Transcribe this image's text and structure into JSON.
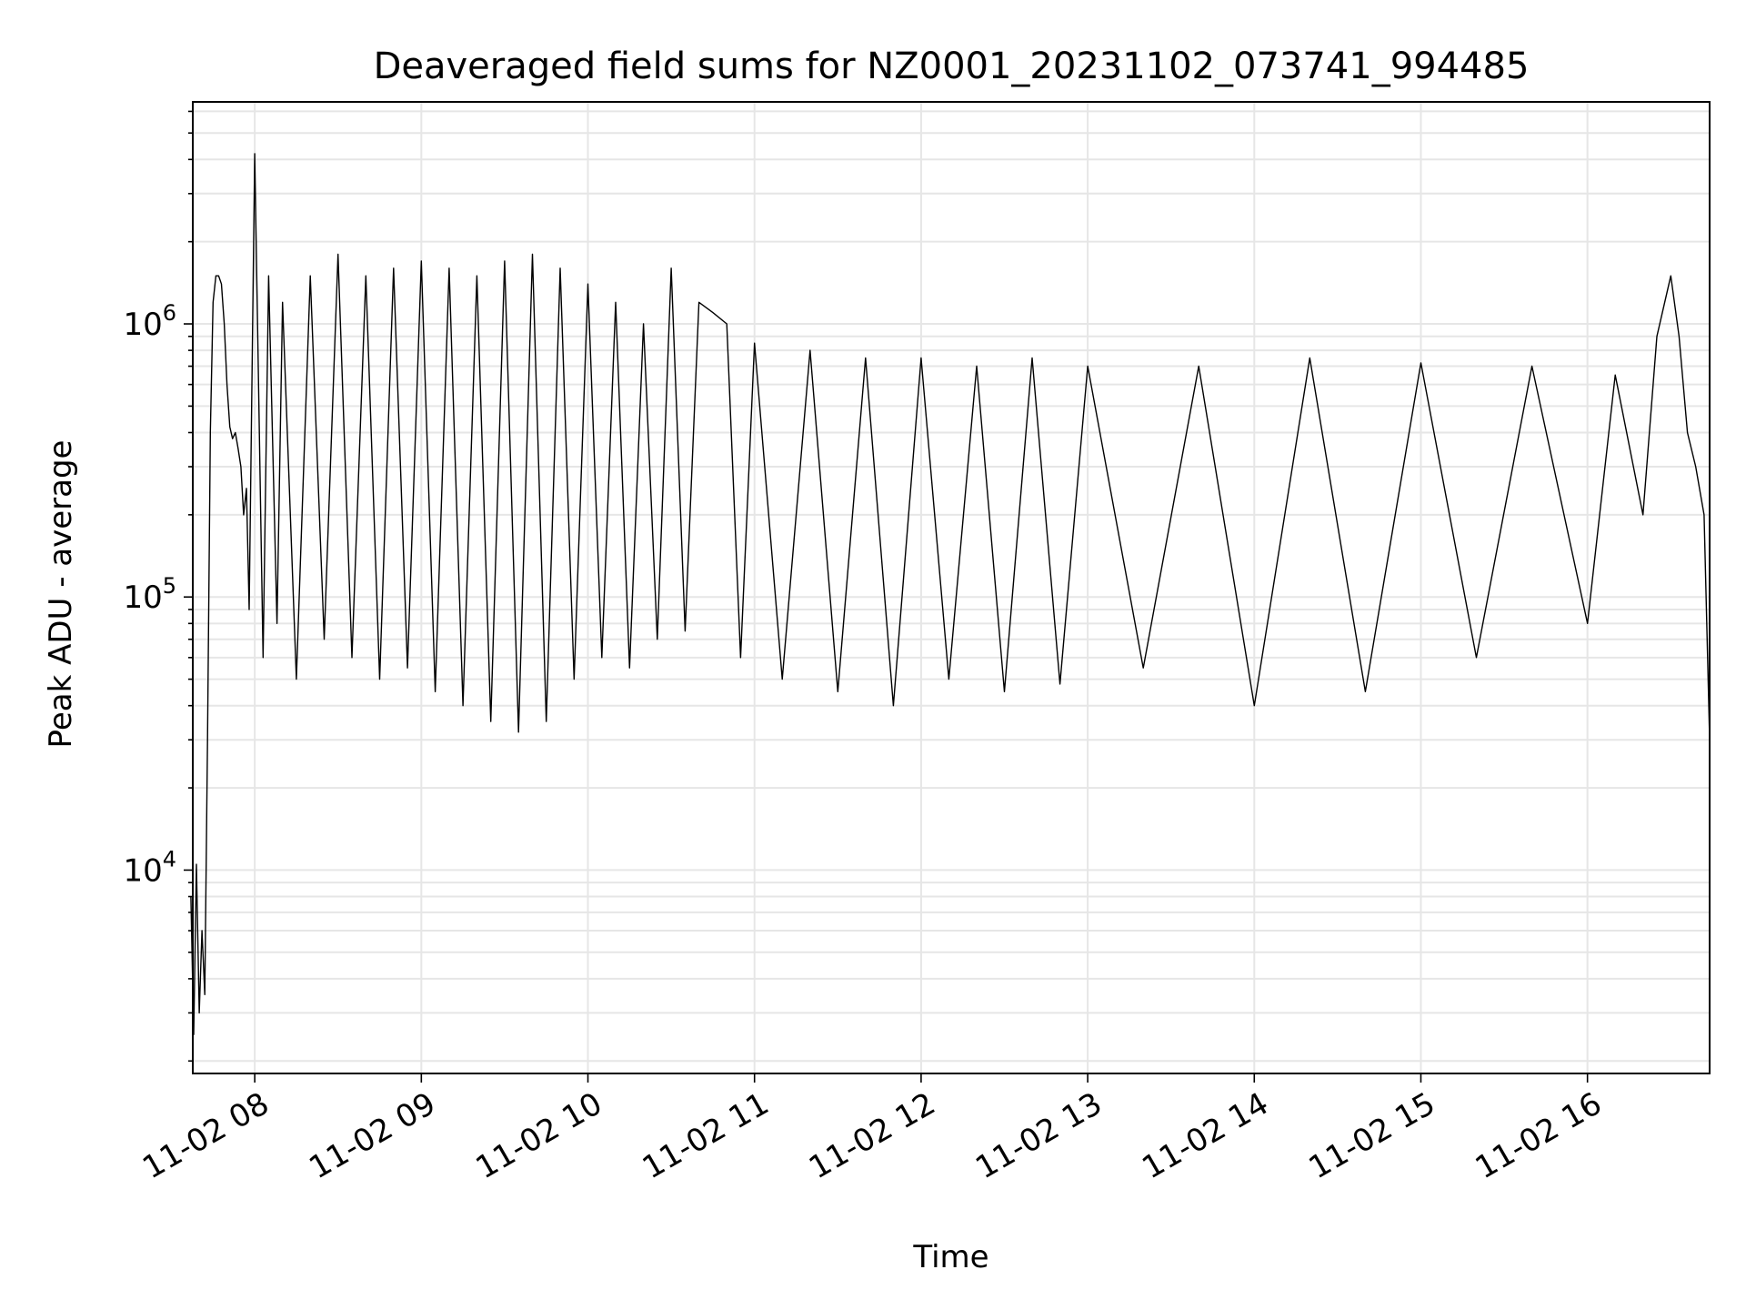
{
  "chart_data": {
    "type": "line",
    "title": "Deaveraged field sums for NZ0001_20231102_073741_994485",
    "xlabel": "Time",
    "ylabel": "Peak ADU - average",
    "yscale": "log",
    "ylim": [
      1800,
      6500000
    ],
    "xlim": [
      "11-02 07:37:41",
      "11-02 16:44:00"
    ],
    "grid": true,
    "legend": "none",
    "line_color": "#000000",
    "grid_color": "#e6e6e6",
    "x_ticks": [
      "11-02 08",
      "11-02 09",
      "11-02 10",
      "11-02 11",
      "11-02 12",
      "11-02 13",
      "11-02 14",
      "11-02 15",
      "11-02 16"
    ],
    "y_ticks": [
      {
        "value": 10000,
        "base": "10",
        "exp": "4"
      },
      {
        "value": 100000,
        "base": "10",
        "exp": "5"
      },
      {
        "value": 1000000,
        "base": "10",
        "exp": "6"
      }
    ],
    "series": [
      {
        "x": [
          "07:37",
          "07:38",
          "07:39",
          "07:40",
          "07:41",
          "07:42",
          "07:43",
          "07:44",
          "07:45",
          "07:46",
          "07:47",
          "07:48",
          "07:49",
          "07:50",
          "07:51",
          "07:52",
          "07:53",
          "07:54",
          "07:55",
          "07:56",
          "07:57",
          "07:58",
          "08:00",
          "08:03",
          "08:05",
          "08:08",
          "08:10",
          "08:15",
          "08:20",
          "08:25",
          "08:30",
          "08:35",
          "08:40",
          "08:45",
          "08:50",
          "08:55",
          "09:00",
          "09:05",
          "09:10",
          "09:15",
          "09:20",
          "09:25",
          "09:30",
          "09:35",
          "09:40",
          "09:45",
          "09:50",
          "09:55",
          "10:00",
          "10:05",
          "10:10",
          "10:15",
          "10:20",
          "10:25",
          "10:30",
          "10:35",
          "10:40",
          "10:45",
          "10:50",
          "10:55",
          "11:00",
          "11:10",
          "11:20",
          "11:30",
          "11:40",
          "11:50",
          "12:00",
          "12:10",
          "12:20",
          "12:30",
          "12:40",
          "12:50",
          "13:00",
          "13:20",
          "13:40",
          "14:00",
          "14:20",
          "14:40",
          "15:00",
          "15:20",
          "15:40",
          "16:00",
          "16:10",
          "16:20",
          "16:25",
          "16:30",
          "16:33",
          "16:36",
          "16:39",
          "16:42",
          "16:44"
        ],
        "y": [
          8000,
          2500,
          10500,
          3000,
          6000,
          3500,
          30000,
          400000,
          1200000,
          1500000,
          1500000,
          1400000,
          1000000,
          600000,
          420000,
          380000,
          400000,
          350000,
          300000,
          200000,
          250000,
          90000,
          4200000,
          60000,
          1500000,
          80000,
          1200000,
          50000,
          1500000,
          70000,
          1800000,
          60000,
          1500000,
          50000,
          1600000,
          55000,
          1700000,
          45000,
          1600000,
          40000,
          1500000,
          35000,
          1700000,
          32000,
          1800000,
          35000,
          1600000,
          50000,
          1400000,
          60000,
          1200000,
          55000,
          1000000,
          70000,
          1600000,
          75000,
          1200000,
          1100000,
          1000000,
          60000,
          850000,
          50000,
          800000,
          45000,
          750000,
          40000,
          750000,
          50000,
          700000,
          45000,
          750000,
          48000,
          700000,
          55000,
          700000,
          40000,
          750000,
          45000,
          720000,
          60000,
          700000,
          80000,
          650000,
          200000,
          900000,
          1500000,
          900000,
          400000,
          300000,
          200000,
          30000
        ]
      }
    ]
  }
}
